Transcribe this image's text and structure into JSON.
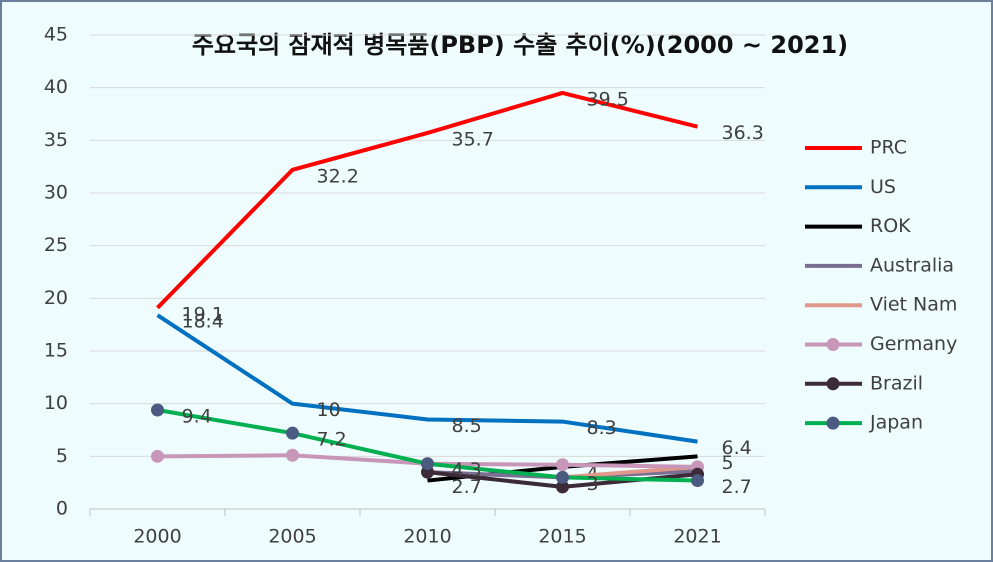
{
  "chart_data": {
    "type": "line",
    "title": "주요국의 잠재적 병목품(PBP) 수출 추이(%)(2000 ~ 2021)",
    "categories": [
      "2000",
      "2005",
      "2010",
      "2015",
      "2021"
    ],
    "ylim": [
      0,
      45
    ],
    "yticks": [
      0,
      5,
      10,
      15,
      20,
      25,
      30,
      35,
      40,
      45
    ],
    "grid": true,
    "legend": "right",
    "series": [
      {
        "name": "PRC",
        "color": "#ff0000",
        "values": [
          19.1,
          32.2,
          35.7,
          39.5,
          36.3
        ],
        "data_labels": true,
        "marker": false
      },
      {
        "name": "US",
        "color": "#0070c0",
        "values": [
          18.4,
          10,
          8.5,
          8.3,
          6.4
        ],
        "data_labels": true,
        "marker": false
      },
      {
        "name": "ROK",
        "color": "#000000",
        "values": [
          null,
          null,
          2.7,
          4,
          5
        ],
        "data_labels": true,
        "marker": false
      },
      {
        "name": "Australia",
        "color": "#7a6f93",
        "values": [
          null,
          null,
          3.5,
          3.0,
          3.6
        ],
        "data_labels": false,
        "marker": false
      },
      {
        "name": "Viet Nam",
        "color": "#e0988a",
        "values": [
          null,
          null,
          null,
          3.0,
          4.0
        ],
        "data_labels": false,
        "marker": false
      },
      {
        "name": "Germany",
        "color": "#c896b8",
        "values": [
          5.0,
          5.1,
          4.3,
          4.2,
          4.0
        ],
        "data_labels": false,
        "marker": true,
        "marker_color": "#c896b8"
      },
      {
        "name": "Brazil",
        "color": "#3d2a38",
        "values": [
          null,
          null,
          3.5,
          2.1,
          3.3
        ],
        "data_labels": false,
        "marker": true,
        "marker_color": "#3d2a38"
      },
      {
        "name": "Japan",
        "color": "#00b050",
        "values": [
          9.4,
          7.2,
          4.3,
          3,
          2.7
        ],
        "data_labels": true,
        "marker": true,
        "marker_color": "#4a5a80"
      }
    ]
  }
}
